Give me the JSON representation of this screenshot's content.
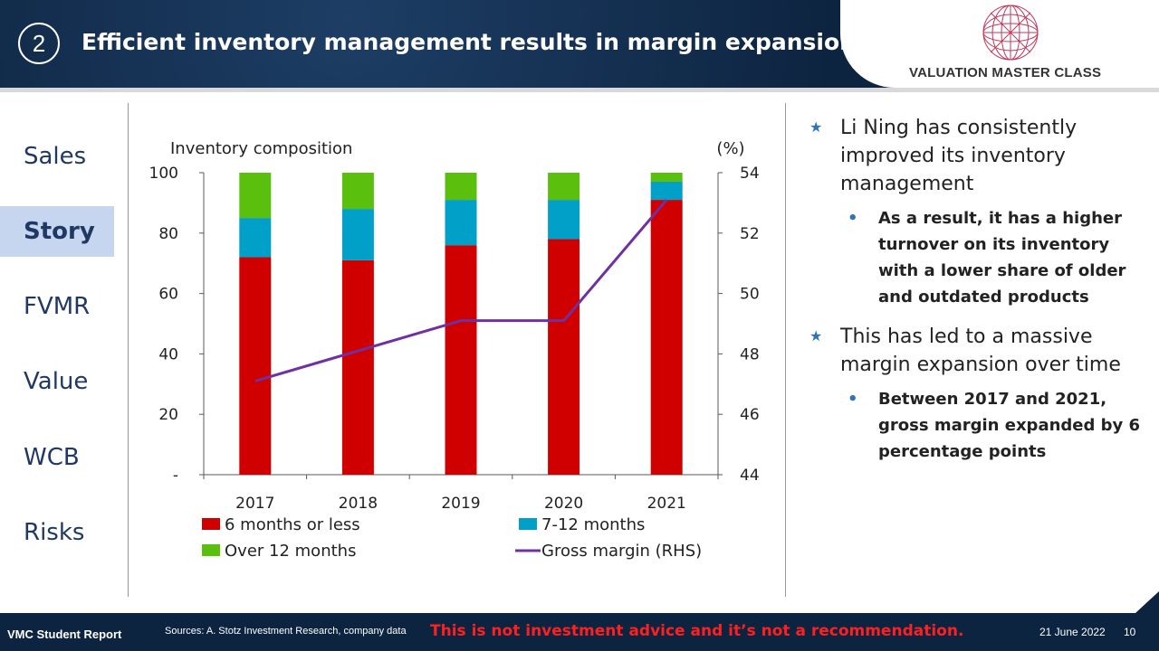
{
  "header": {
    "number": "2",
    "title": "Efficient inventory management results in margin expansion",
    "logo_text": "VALUATION MASTER CLASS"
  },
  "nav": {
    "items": [
      {
        "label": "Sales",
        "active": false
      },
      {
        "label": "Story",
        "active": true
      },
      {
        "label": "FVMR",
        "active": false
      },
      {
        "label": "Value",
        "active": false
      },
      {
        "label": "WCB",
        "active": false
      },
      {
        "label": "Risks",
        "active": false
      }
    ]
  },
  "chart_data": {
    "type": "bar",
    "title": "Inventory composition",
    "right_axis_label": "(%)",
    "categories": [
      "2017",
      "2018",
      "2019",
      "2020",
      "2021"
    ],
    "stacked": true,
    "series": [
      {
        "name": "6 months or less",
        "values": [
          72,
          71,
          76,
          78,
          91
        ],
        "color": "#d00000"
      },
      {
        "name": "7-12 months",
        "values": [
          13,
          17,
          15,
          13,
          6
        ],
        "color": "#00a0c8"
      },
      {
        "name": "Over 12 months",
        "values": [
          15,
          12,
          9,
          9,
          3
        ],
        "color": "#5bbf0e"
      }
    ],
    "line_series": {
      "name": "Gross margin (RHS)",
      "values": [
        47.1,
        48.1,
        49.1,
        49.1,
        53.1
      ],
      "color": "#7030a0"
    },
    "ylim": [
      0,
      100
    ],
    "y_ticks": [
      "-",
      "20",
      "40",
      "60",
      "80",
      "100"
    ],
    "y2lim": [
      44,
      54
    ],
    "y2_ticks": [
      "44",
      "46",
      "48",
      "50",
      "52",
      "54"
    ],
    "legend_position": "bottom"
  },
  "bullets": [
    {
      "text": "Li Ning has consistently improved its inventory management",
      "sub": [
        "As a result, it has a higher turnover on its inventory with a lower share of older and outdated products"
      ]
    },
    {
      "text": "This has led to a massive margin expansion over time",
      "sub": [
        "Between 2017 and 2021, gross margin expanded by 6 percentage points"
      ]
    }
  ],
  "footer": {
    "left": "VMC Student Report",
    "source": "Sources: A. Stotz Investment Research, company data",
    "warning": "This is not investment advice and it’s not a recommendation.",
    "date": "21 June 2022",
    "page": "10"
  }
}
